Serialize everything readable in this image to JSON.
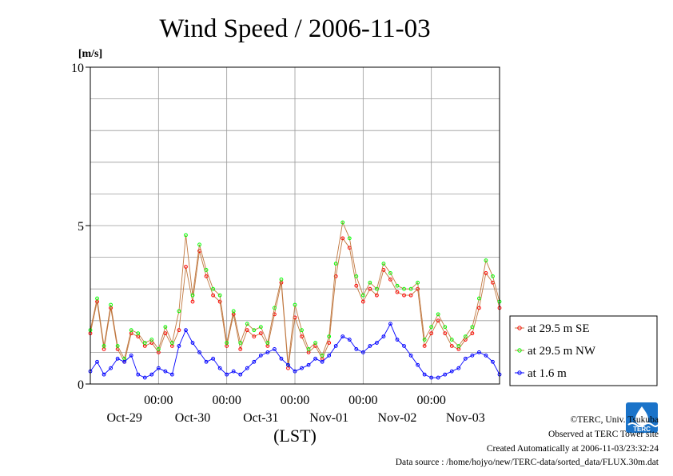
{
  "chart_data": {
    "type": "line",
    "title": "Wind Speed / 2006-11-03",
    "ylabel": "[m/s]",
    "xlabel": "(LST)",
    "ylim": [
      0,
      10
    ],
    "xlim": [
      -1.0,
      5.0
    ],
    "y_ticks": [
      0,
      5,
      10
    ],
    "x_ticks": [
      0,
      1,
      2,
      3,
      4
    ],
    "x_tick_labels": [
      "00:00",
      "00:00",
      "00:00",
      "00:00",
      "00:00"
    ],
    "day_labels": [
      {
        "x": -0.5,
        "label": "Oct-29"
      },
      {
        "x": 0.5,
        "label": "Oct-30"
      },
      {
        "x": 1.5,
        "label": "Oct-31"
      },
      {
        "x": 2.5,
        "label": "Nov-01"
      },
      {
        "x": 3.5,
        "label": "Nov-02"
      },
      {
        "x": 4.5,
        "label": "Nov-03"
      }
    ],
    "grid": true,
    "legend_position": "right",
    "series": [
      {
        "name": "at 29.5 m SE",
        "color": "#ff0000",
        "line_color": "#c07840",
        "x": [
          -1.0,
          -0.9,
          -0.8,
          -0.7,
          -0.6,
          -0.5,
          -0.4,
          -0.3,
          -0.2,
          -0.1,
          0.0,
          0.1,
          0.2,
          0.3,
          0.4,
          0.5,
          0.6,
          0.7,
          0.8,
          0.9,
          1.0,
          1.1,
          1.2,
          1.3,
          1.4,
          1.5,
          1.6,
          1.7,
          1.8,
          1.9,
          2.0,
          2.1,
          2.2,
          2.3,
          2.4,
          2.5,
          2.6,
          2.7,
          2.8,
          2.9,
          3.0,
          3.1,
          3.2,
          3.3,
          3.4,
          3.5,
          3.6,
          3.7,
          3.8,
          3.9,
          4.0,
          4.1,
          4.2,
          4.3,
          4.4,
          4.5,
          4.6,
          4.7,
          4.8,
          4.9,
          5.0
        ],
        "y": [
          1.6,
          2.6,
          1.1,
          2.4,
          1.1,
          0.7,
          1.6,
          1.5,
          1.2,
          1.3,
          1.0,
          1.6,
          1.2,
          1.7,
          3.7,
          2.6,
          4.2,
          3.4,
          2.8,
          2.6,
          1.2,
          2.2,
          1.1,
          1.7,
          1.5,
          1.6,
          1.2,
          2.2,
          3.2,
          0.5,
          2.1,
          1.5,
          1.0,
          1.2,
          0.8,
          1.3,
          3.4,
          4.6,
          4.3,
          3.1,
          2.6,
          3.0,
          2.8,
          3.6,
          3.3,
          2.9,
          2.8,
          2.8,
          3.0,
          1.2,
          1.6,
          2.0,
          1.6,
          1.2,
          1.1,
          1.4,
          1.6,
          2.4,
          3.5,
          3.2,
          2.4
        ]
      },
      {
        "name": "at 29.5 m NW",
        "color": "#00ff00",
        "line_color": "#c07840",
        "x": [
          -1.0,
          -0.9,
          -0.8,
          -0.7,
          -0.6,
          -0.5,
          -0.4,
          -0.3,
          -0.2,
          -0.1,
          0.0,
          0.1,
          0.2,
          0.3,
          0.4,
          0.5,
          0.6,
          0.7,
          0.8,
          0.9,
          1.0,
          1.1,
          1.2,
          1.3,
          1.4,
          1.5,
          1.6,
          1.7,
          1.8,
          1.9,
          2.0,
          2.1,
          2.2,
          2.3,
          2.4,
          2.5,
          2.6,
          2.7,
          2.8,
          2.9,
          3.0,
          3.1,
          3.2,
          3.3,
          3.4,
          3.5,
          3.6,
          3.7,
          3.8,
          3.9,
          4.0,
          4.1,
          4.2,
          4.3,
          4.4,
          4.5,
          4.6,
          4.7,
          4.8,
          4.9,
          5.0
        ],
        "y": [
          1.7,
          2.7,
          1.2,
          2.5,
          1.2,
          0.8,
          1.7,
          1.6,
          1.3,
          1.4,
          1.1,
          1.8,
          1.3,
          2.3,
          4.7,
          2.8,
          4.4,
          3.6,
          3.0,
          2.8,
          1.3,
          2.3,
          1.3,
          1.9,
          1.7,
          1.8,
          1.3,
          2.4,
          3.3,
          0.6,
          2.5,
          1.7,
          1.1,
          1.3,
          0.9,
          1.5,
          3.8,
          5.1,
          4.6,
          3.4,
          2.8,
          3.2,
          3.0,
          3.8,
          3.5,
          3.1,
          3.0,
          3.0,
          3.2,
          1.4,
          1.8,
          2.2,
          1.8,
          1.4,
          1.2,
          1.5,
          1.8,
          2.7,
          3.9,
          3.4,
          2.6
        ]
      },
      {
        "name": "at 1.6 m",
        "color": "#0000ff",
        "line_color": "#0000ff",
        "x": [
          -1.0,
          -0.9,
          -0.8,
          -0.7,
          -0.6,
          -0.5,
          -0.4,
          -0.3,
          -0.2,
          -0.1,
          0.0,
          0.1,
          0.2,
          0.3,
          0.4,
          0.5,
          0.6,
          0.7,
          0.8,
          0.9,
          1.0,
          1.1,
          1.2,
          1.3,
          1.4,
          1.5,
          1.6,
          1.7,
          1.8,
          1.9,
          2.0,
          2.1,
          2.2,
          2.3,
          2.4,
          2.5,
          2.6,
          2.7,
          2.8,
          2.9,
          3.0,
          3.1,
          3.2,
          3.3,
          3.4,
          3.5,
          3.6,
          3.7,
          3.8,
          3.9,
          4.0,
          4.1,
          4.2,
          4.3,
          4.4,
          4.5,
          4.6,
          4.7,
          4.8,
          4.9,
          5.0
        ],
        "y": [
          0.4,
          0.7,
          0.3,
          0.5,
          0.8,
          0.7,
          0.9,
          0.3,
          0.2,
          0.3,
          0.5,
          0.4,
          0.3,
          1.2,
          1.7,
          1.3,
          1.0,
          0.7,
          0.8,
          0.5,
          0.3,
          0.4,
          0.3,
          0.5,
          0.7,
          0.9,
          1.0,
          1.1,
          0.8,
          0.6,
          0.4,
          0.5,
          0.6,
          0.8,
          0.7,
          0.9,
          1.2,
          1.5,
          1.4,
          1.1,
          1.0,
          1.2,
          1.3,
          1.5,
          1.9,
          1.4,
          1.2,
          0.9,
          0.6,
          0.3,
          0.2,
          0.2,
          0.3,
          0.4,
          0.5,
          0.8,
          0.9,
          1.0,
          0.9,
          0.7,
          0.3
        ]
      }
    ]
  },
  "footer": {
    "copyright": "©TERC, Univ. Tsukuba",
    "site": "Observed at TERC Tower site",
    "created": "Created Automatically at 2006-11-03/23:32:24",
    "source": "Data source : /home/hojyo/new/TERC-data/sorted_data/FLUX.30m.dat"
  },
  "logo": {
    "text": "TERC",
    "color": "#1a73c9"
  }
}
